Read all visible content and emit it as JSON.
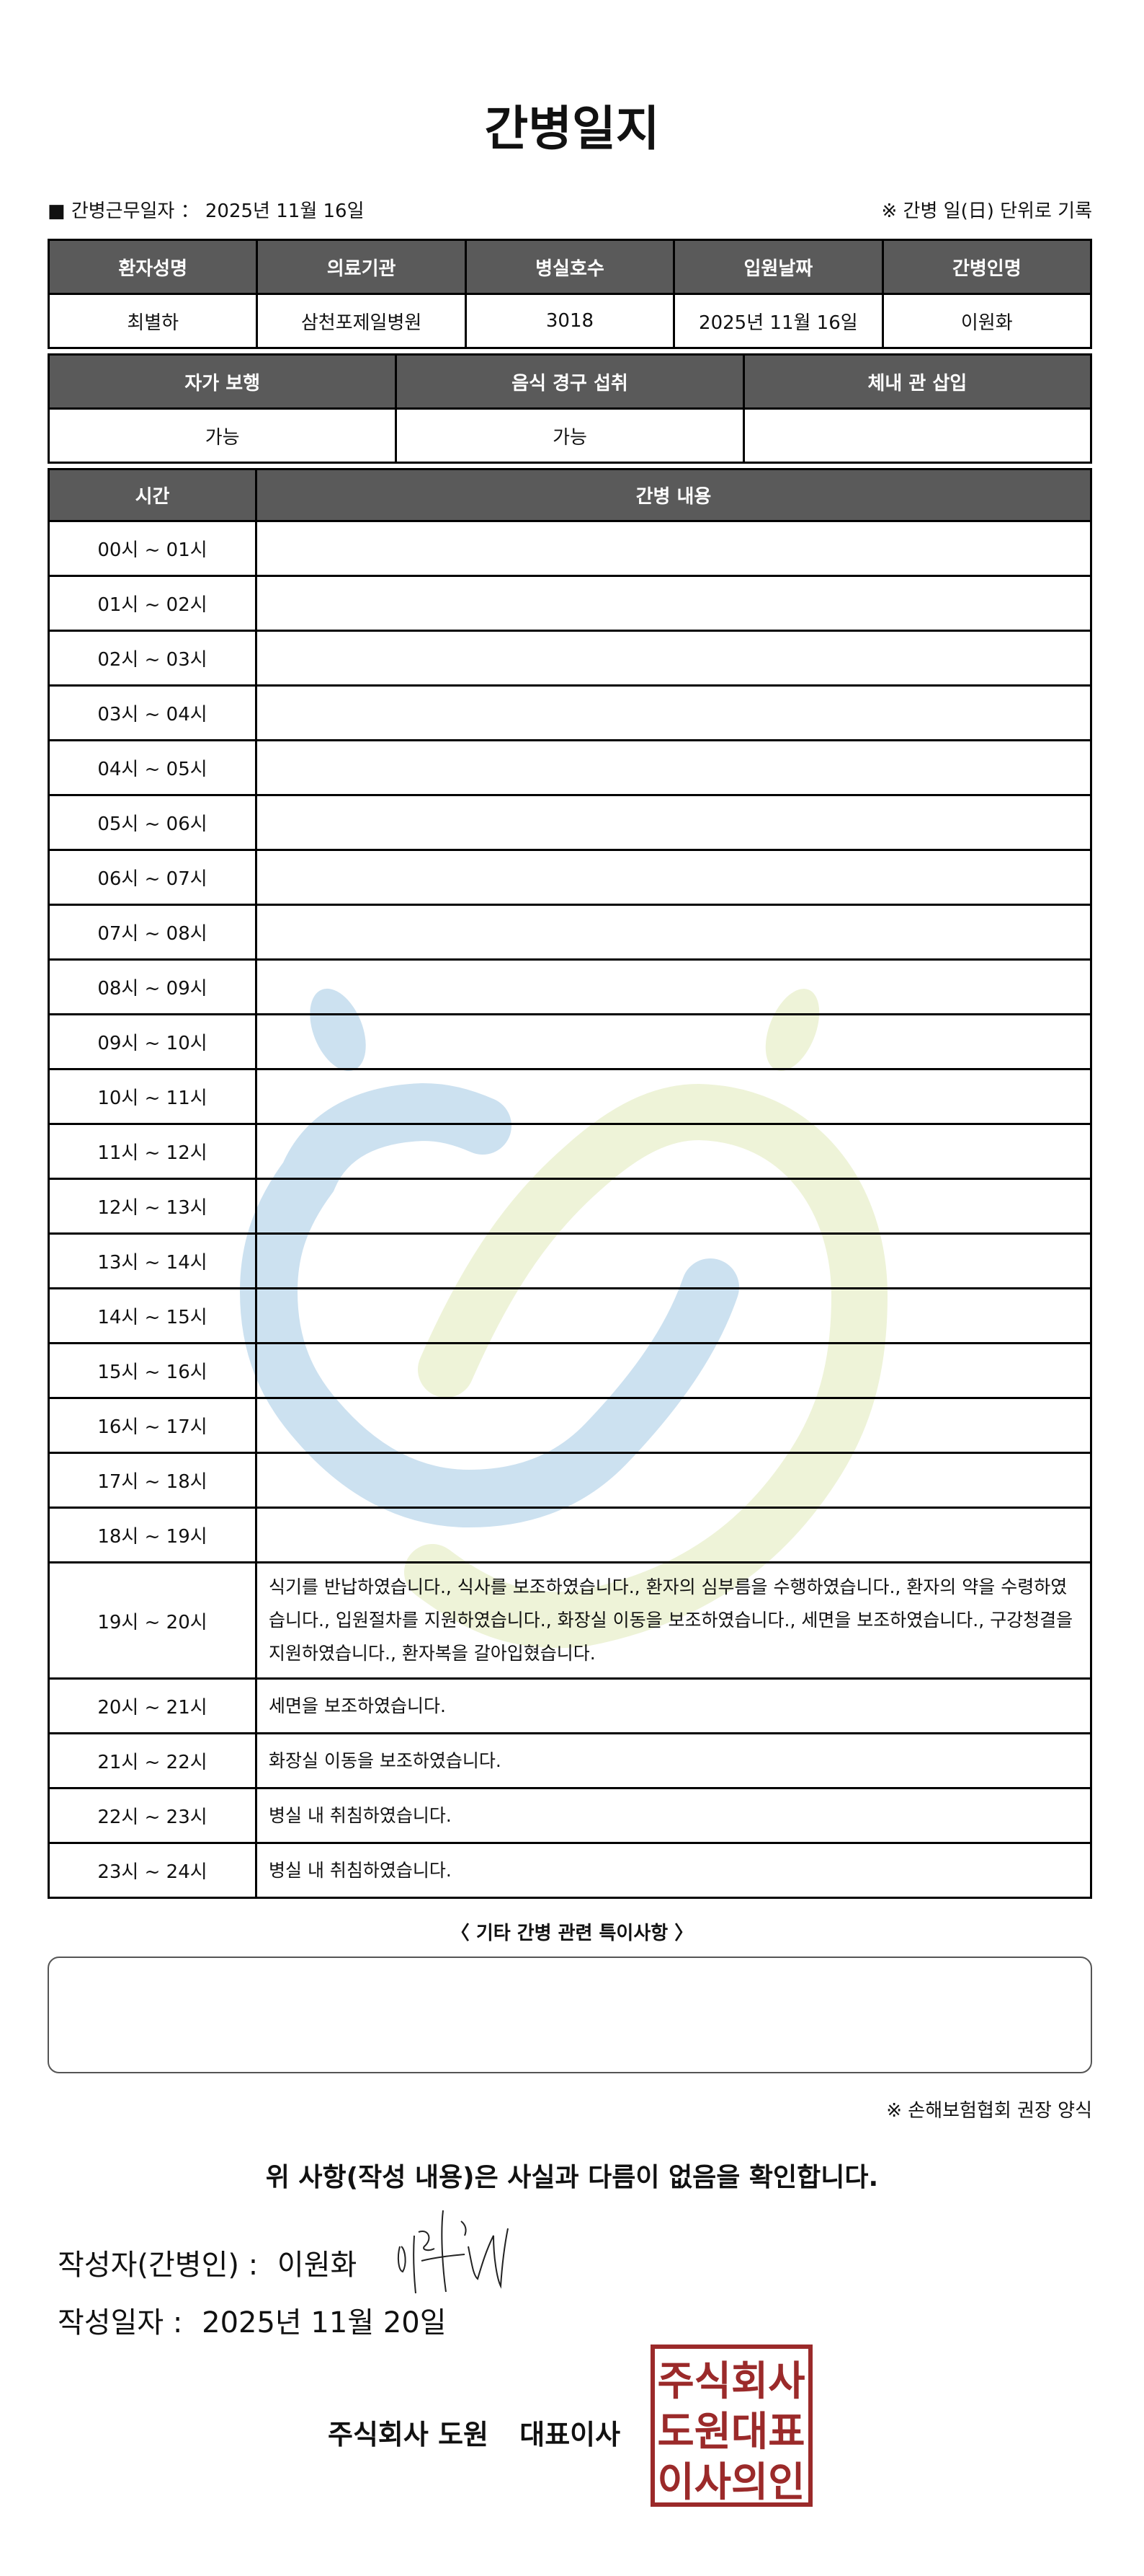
{
  "title": "간병일지",
  "work_date_label": "■ 간병근무일자 ：",
  "work_date": "2025년 11월 16일",
  "unit_note": "※ 간병 일(日) 단위로 기록",
  "patient_table": {
    "headers": [
      "환자성명",
      "의료기관",
      "병실호수",
      "입원날짜",
      "간병인명"
    ],
    "values": [
      "최별하",
      "삼천포제일병원",
      "3018",
      "2025년 11월 16일",
      "이원화"
    ]
  },
  "status_table": {
    "headers": [
      "자가 보행",
      "음식 경구 섭취",
      "체내 관 삽입"
    ],
    "values": [
      "가능",
      "가능",
      ""
    ]
  },
  "log_table": {
    "headers": [
      "시간",
      "간병 내용"
    ],
    "rows": [
      {
        "time": "00시 ~ 01시",
        "content": ""
      },
      {
        "time": "01시 ~ 02시",
        "content": ""
      },
      {
        "time": "02시 ~ 03시",
        "content": ""
      },
      {
        "time": "03시 ~ 04시",
        "content": ""
      },
      {
        "time": "04시 ~ 05시",
        "content": ""
      },
      {
        "time": "05시 ~ 06시",
        "content": ""
      },
      {
        "time": "06시 ~ 07시",
        "content": ""
      },
      {
        "time": "07시 ~ 08시",
        "content": ""
      },
      {
        "time": "08시 ~ 09시",
        "content": ""
      },
      {
        "time": "09시 ~ 10시",
        "content": ""
      },
      {
        "time": "10시 ~ 11시",
        "content": ""
      },
      {
        "time": "11시 ~ 12시",
        "content": ""
      },
      {
        "time": "12시 ~ 13시",
        "content": ""
      },
      {
        "time": "13시 ~ 14시",
        "content": ""
      },
      {
        "time": "14시 ~ 15시",
        "content": ""
      },
      {
        "time": "15시 ~ 16시",
        "content": ""
      },
      {
        "time": "16시 ~ 17시",
        "content": ""
      },
      {
        "time": "17시 ~ 18시",
        "content": ""
      },
      {
        "time": "18시 ~ 19시",
        "content": ""
      },
      {
        "time": "19시 ~ 20시",
        "content": "식기를 반납하였습니다., 식사를 보조하였습니다., 환자의 심부름을 수행하였습니다., 환자의 약을 수령하였습니다., 입원절차를 지원하였습니다., 화장실 이동을 보조하였습니다., 세면을 보조하였습니다., 구강청결을 지원하였습니다., 환자복을 갈아입혔습니다."
      },
      {
        "time": "20시 ~ 21시",
        "content": "세면을 보조하였습니다."
      },
      {
        "time": "21시 ~ 22시",
        "content": "화장실 이동을 보조하였습니다."
      },
      {
        "time": "22시 ~ 23시",
        "content": "병실 내 취침하였습니다."
      },
      {
        "time": "23시 ~ 24시",
        "content": "병실 내 취침하였습니다."
      }
    ]
  },
  "remarks_title": "〈 기타 간병 관련 특이사항 〉",
  "remarks": "",
  "recommend_note": "※ 손해보험협회 권장 양식",
  "confirmation": "위 사항(작성 내용)은 사실과 다름이 없음을 확인합니다.",
  "writer_label": "작성자(간병인) :",
  "writer_name": "이원화",
  "write_date_label": "작성일자 :",
  "write_date": "2025년 11월 20일",
  "company": "주식회사 도원",
  "ceo_title": "대표이사",
  "seal_text": [
    "주식회사",
    "도원대표",
    "이사의인"
  ],
  "colors": {
    "header_bg": "#5a5a5a",
    "seal_red": "#9b2a2a",
    "watermark_blue": "#cce1f0",
    "watermark_green": "#eef3d8"
  }
}
